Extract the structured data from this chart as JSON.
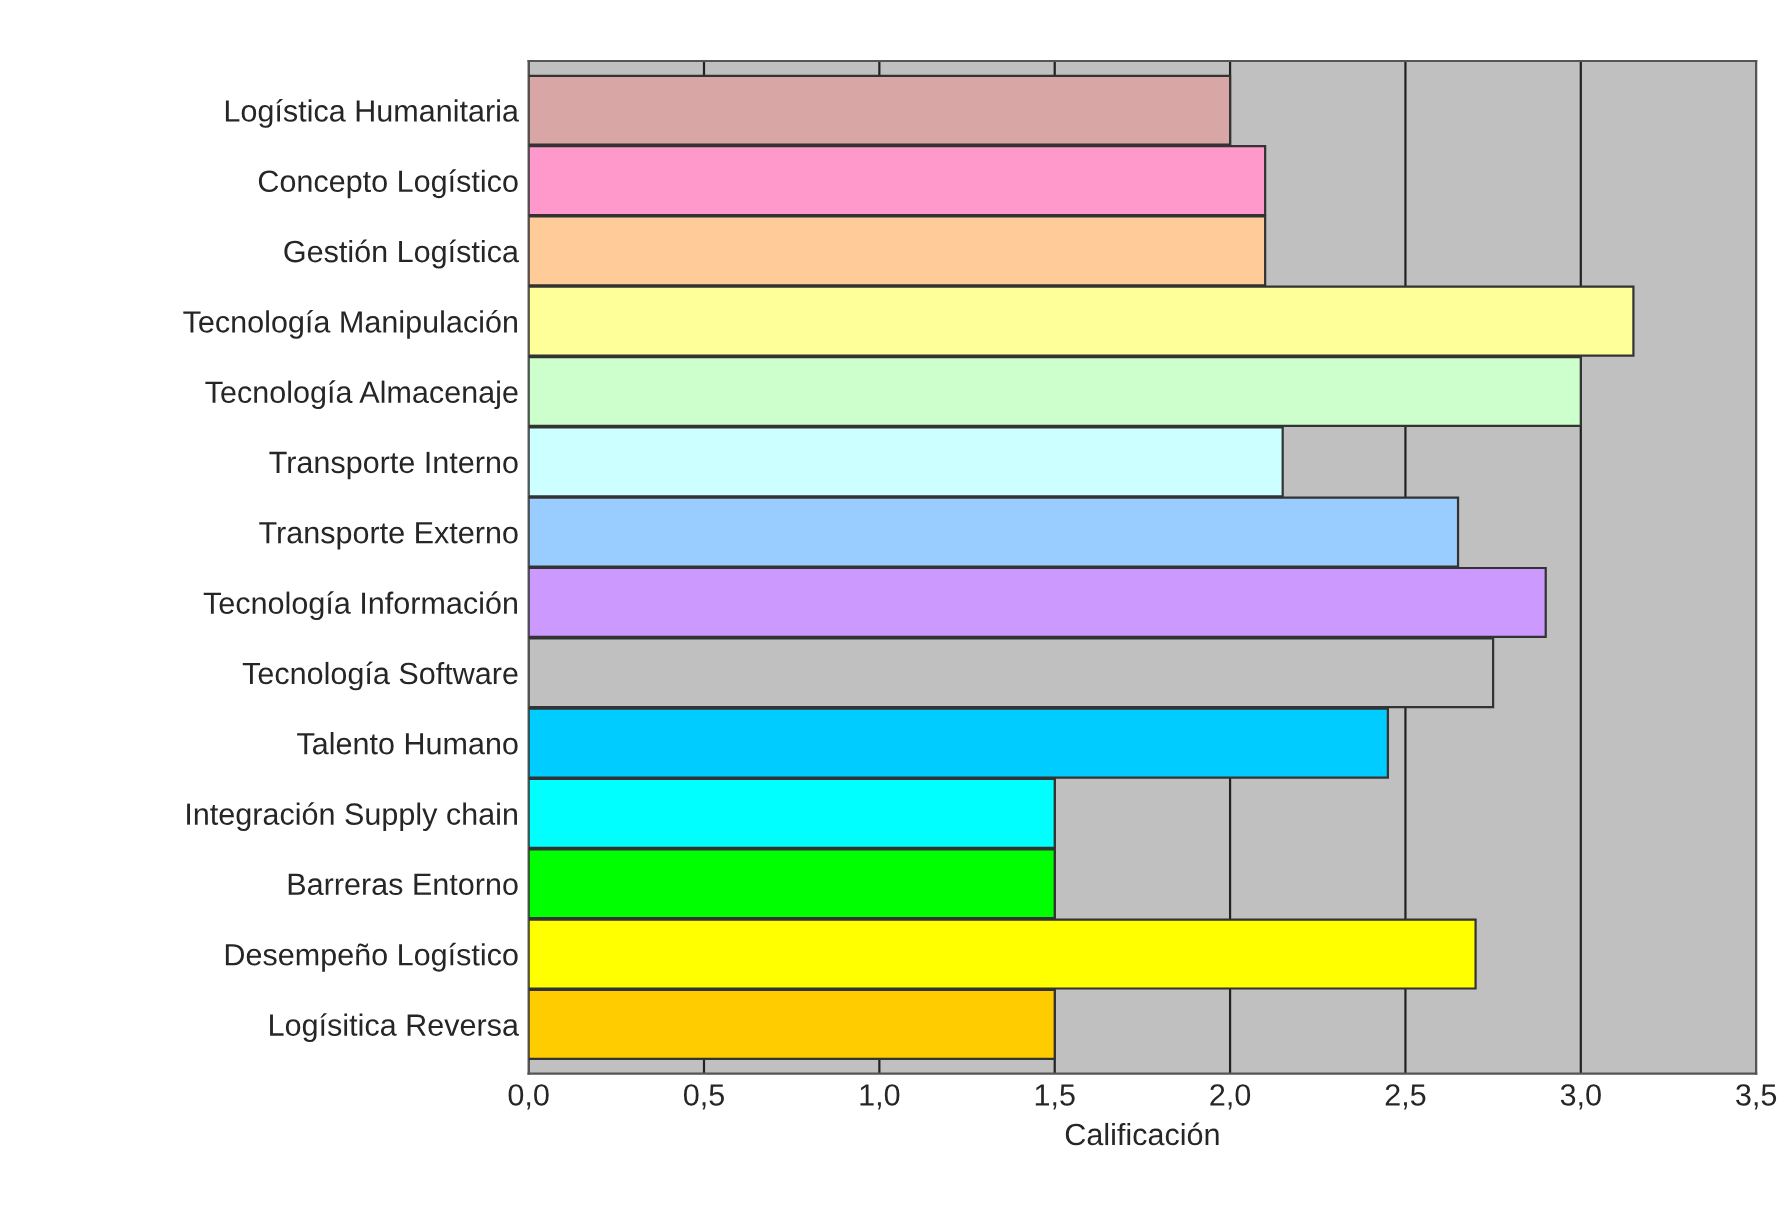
{
  "chart_data": {
    "type": "bar",
    "orientation": "horizontal",
    "xlabel": "Calificación",
    "categories": [
      "Logística Humanitaria",
      "Concepto Logístico",
      "Gestión Logística",
      "Tecnología Manipulación",
      "Tecnología Almacenaje",
      "Transporte Interno",
      "Transporte Externo",
      "Tecnología Información",
      "Tecnología Software",
      "Talento Humano",
      "Integración Supply chain",
      "Barreras Entorno",
      "Desempeño Logístico",
      "Logísitica Reversa"
    ],
    "values": [
      2.0,
      2.1,
      2.1,
      3.15,
      3.0,
      2.15,
      2.65,
      2.9,
      2.75,
      2.45,
      1.5,
      1.5,
      2.7,
      1.5
    ],
    "colors": [
      "#d9a6a6",
      "#ff99cc",
      "#ffcc99",
      "#ffff99",
      "#ccffcc",
      "#ccffff",
      "#99ccff",
      "#cc99ff",
      "#c0c0c0",
      "#00ccff",
      "#00ffff",
      "#00ff00",
      "#ffff00",
      "#ffcc00"
    ],
    "xlim": [
      0,
      3.5
    ],
    "xticks": [
      {
        "value": 0,
        "label": "0,0"
      },
      {
        "value": 0.5,
        "label": "0,5"
      },
      {
        "value": 1,
        "label": "1,0"
      },
      {
        "value": 1.5,
        "label": "1,5"
      },
      {
        "value": 2,
        "label": "2,0"
      },
      {
        "value": 2.5,
        "label": "2,5"
      },
      {
        "value": 3,
        "label": "3,0"
      },
      {
        "value": 3.5,
        "label": "3,5"
      }
    ],
    "grid": "x"
  }
}
